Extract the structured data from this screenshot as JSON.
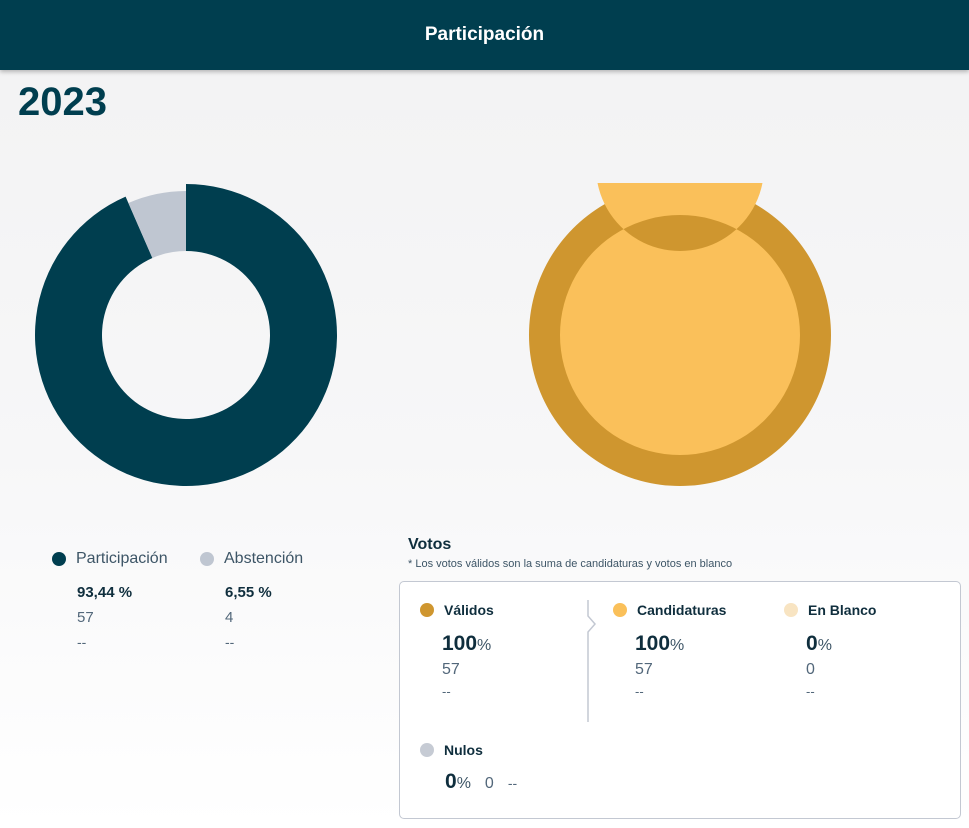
{
  "header": {
    "title": "Participación"
  },
  "year": "2023",
  "colors": {
    "header_bg": "#003e4f",
    "participacion": "#003e4f",
    "abstencion": "#bfc6d1",
    "validos": "#cf962f",
    "candidaturas": "#fac05a",
    "en_blanco": "#f8e4c2",
    "nulos": "#c6cbd4"
  },
  "chart_data": [
    {
      "type": "pie",
      "categories": [
        "Participación",
        "Abstención"
      ],
      "values": [
        93.44,
        6.55
      ]
    },
    {
      "type": "pie",
      "categories": [
        "Válidos",
        "Candidaturas"
      ],
      "values": [
        100,
        100
      ]
    }
  ],
  "participation_legend": [
    {
      "label": "Participación",
      "percent": "93,44 %",
      "count": "57",
      "extra": "--"
    },
    {
      "label": "Abstención",
      "percent": "6,55 %",
      "count": "4",
      "extra": "--"
    }
  ],
  "votos": {
    "title": "Votos",
    "note": "* Los votos válidos son la suma de candidaturas y votos en blanco",
    "validos": {
      "label": "Válidos",
      "percent": "100",
      "unit": "%",
      "count": "57",
      "extra": "--"
    },
    "candidaturas": {
      "label": "Candidaturas",
      "percent": "100",
      "unit": "%",
      "count": "57",
      "extra": "--"
    },
    "en_blanco": {
      "label": "En Blanco",
      "percent": "0",
      "unit": "%",
      "count": "0",
      "extra": "--"
    },
    "nulos": {
      "label": "Nulos",
      "percent": "0",
      "unit": "%",
      "count": "0",
      "extra": "--"
    }
  }
}
